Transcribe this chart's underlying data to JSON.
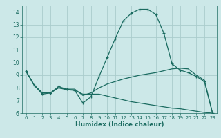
{
  "xlabel": "Humidex (Indice chaleur)",
  "bg_color": "#cce8e8",
  "grid_color": "#aacccc",
  "line_color": "#1a6b60",
  "xlim": [
    -0.5,
    23.5
  ],
  "ylim": [
    6,
    14.5
  ],
  "xticks": [
    0,
    1,
    2,
    3,
    4,
    5,
    6,
    7,
    8,
    9,
    10,
    11,
    12,
    13,
    14,
    15,
    16,
    17,
    18,
    19,
    20,
    21,
    22,
    23
  ],
  "yticks": [
    6,
    7,
    8,
    9,
    10,
    11,
    12,
    13,
    14
  ],
  "curve1_x": [
    0,
    1,
    2,
    3,
    4,
    5,
    6,
    7,
    8,
    9,
    10,
    11,
    12,
    13,
    14,
    15,
    16,
    17,
    18,
    19,
    20,
    21,
    22,
    23
  ],
  "curve1_y": [
    9.3,
    8.2,
    7.5,
    7.6,
    8.1,
    7.9,
    7.8,
    6.8,
    7.3,
    8.9,
    10.4,
    11.9,
    13.3,
    13.9,
    14.2,
    14.2,
    13.8,
    12.3,
    9.9,
    9.4,
    9.2,
    8.9,
    8.5,
    6.0
  ],
  "curve2_x": [
    0,
    1,
    2,
    3,
    4,
    5,
    6,
    7,
    8,
    9,
    10,
    11,
    12,
    13,
    14,
    15,
    16,
    17,
    18,
    19,
    20,
    21,
    22,
    23
  ],
  "curve2_y": [
    9.3,
    8.2,
    7.6,
    7.6,
    8.0,
    7.9,
    7.9,
    7.4,
    7.6,
    8.0,
    8.3,
    8.5,
    8.7,
    8.85,
    9.0,
    9.1,
    9.2,
    9.35,
    9.5,
    9.55,
    9.5,
    9.0,
    8.6,
    6.0
  ],
  "curve3_x": [
    0,
    1,
    2,
    3,
    4,
    5,
    6,
    7,
    8,
    9,
    10,
    11,
    12,
    13,
    14,
    15,
    16,
    17,
    18,
    19,
    20,
    21,
    22,
    23
  ],
  "curve3_y": [
    9.3,
    8.2,
    7.6,
    7.6,
    8.0,
    7.85,
    7.8,
    7.5,
    7.5,
    7.5,
    7.35,
    7.2,
    7.05,
    6.9,
    6.8,
    6.7,
    6.6,
    6.5,
    6.4,
    6.35,
    6.25,
    6.15,
    6.05,
    6.0
  ]
}
